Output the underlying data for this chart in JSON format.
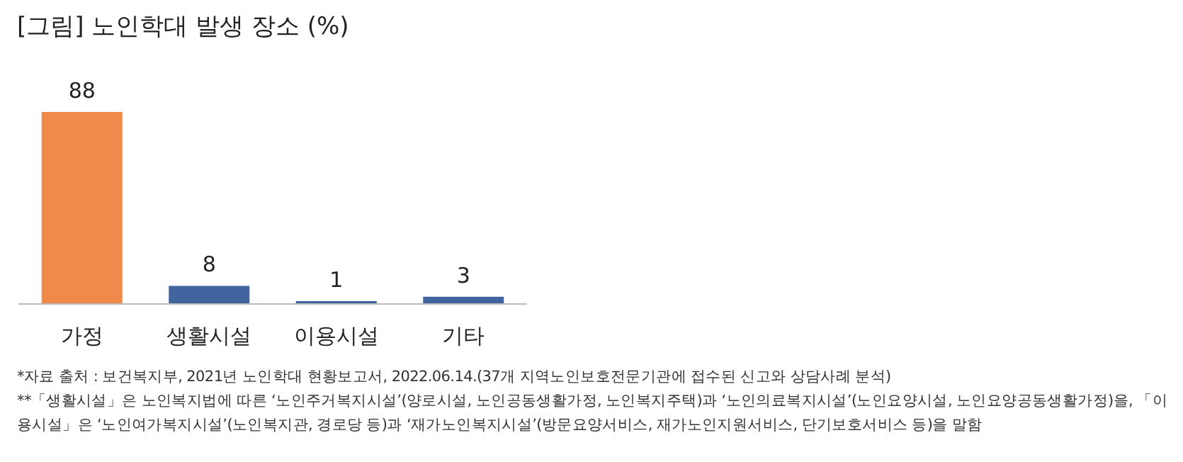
{
  "chart_data": {
    "type": "bar",
    "title": "[그림] 노인학대 발생 장소 (%)",
    "categories": [
      "가정",
      "생활시설",
      "이용시설",
      "기타"
    ],
    "values": [
      88,
      8,
      1,
      3
    ],
    "colors": [
      "#f08a4b",
      "#41649f",
      "#41649f",
      "#41649f"
    ],
    "data_labels": true,
    "annotations": [
      "*자료 출처 : 보건복지부, 2021년 노인학대 현황보고서, 2022.06.14.(37개 지역노인보호전문기관에 접수된 신고와 상담사례 분석)",
      "**「생활시설」은 노인복지법에 따른 ‘노인주거복지시설’(양로시설, 노인공동생활가정, 노인복지주택)과 ‘노인의료복지시설’(노인요양시설, 노인요양공동생활가정)을, 「이용시설」은 ‘노인여가복지시설’(노인복지관, 경로당 등)과 ‘재가노인복지시설’(방문요양서비스, 재가노인지원서비스, 단기보호서비스 등)을 말함"
    ]
  }
}
